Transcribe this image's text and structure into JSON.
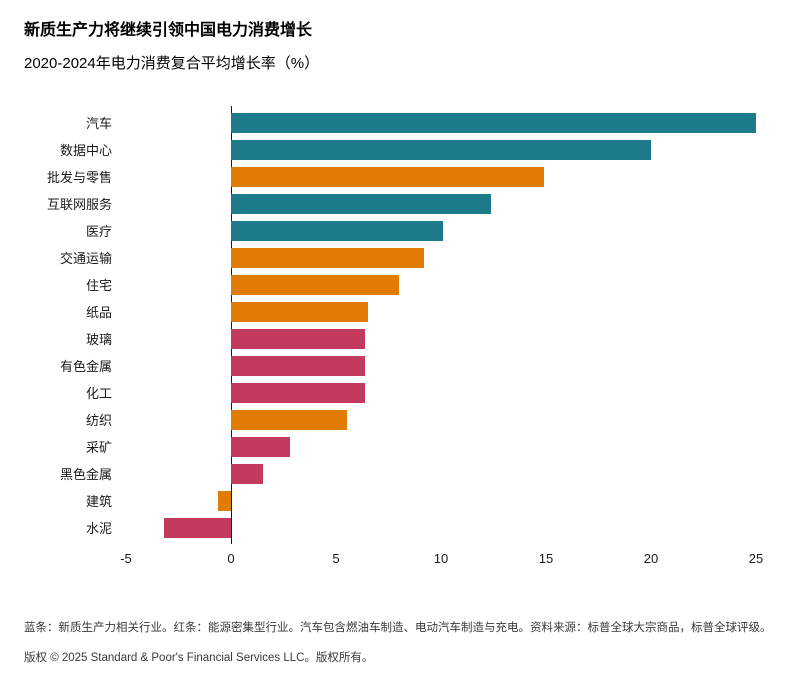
{
  "header": {
    "title": "新质生产力将继续引领中国电力消费增长",
    "subtitle": "2020-2024年电力消费复合平均增长率（%）"
  },
  "chart_data": {
    "type": "bar",
    "orientation": "horizontal",
    "title": "新质生产力将继续引领中国电力消费增长",
    "subtitle": "2020-2024年电力消费复合平均增长率（%）",
    "xlim": [
      -5,
      25
    ],
    "x_ticks": [
      "-5",
      "0",
      "5",
      "10",
      "15",
      "20",
      "25"
    ],
    "grid": "off",
    "colors": {
      "teal": "#1E7B8C",
      "orange": "#E07C04",
      "red": "#C23A5D"
    },
    "bars": [
      {
        "category": "汽车",
        "value": 25.0,
        "color": "teal"
      },
      {
        "category": "数据中心",
        "value": 20.0,
        "color": "teal"
      },
      {
        "category": "批发与零售",
        "value": 14.9,
        "color": "orange"
      },
      {
        "category": "互联网服务",
        "value": 12.4,
        "color": "teal"
      },
      {
        "category": "医疗",
        "value": 10.1,
        "color": "teal"
      },
      {
        "category": "交通运输",
        "value": 9.2,
        "color": "orange"
      },
      {
        "category": "住宅",
        "value": 8.0,
        "color": "orange"
      },
      {
        "category": "纸品",
        "value": 6.5,
        "color": "orange"
      },
      {
        "category": "玻璃",
        "value": 6.4,
        "color": "red"
      },
      {
        "category": "有色金属",
        "value": 6.4,
        "color": "red"
      },
      {
        "category": "化工",
        "value": 6.4,
        "color": "red"
      },
      {
        "category": "纺织",
        "value": 5.5,
        "color": "orange"
      },
      {
        "category": "采矿",
        "value": 2.8,
        "color": "red"
      },
      {
        "category": "黑色金属",
        "value": 1.5,
        "color": "red"
      },
      {
        "category": "建筑",
        "value": -0.6,
        "color": "orange"
      },
      {
        "category": "水泥",
        "value": -3.2,
        "color": "red"
      }
    ]
  },
  "footnotes": {
    "note": "蓝条：新质生产力相关行业。红条：能源密集型行业。汽车包含燃油车制造、电动汽车制造与充电。资料来源：标普全球大宗商品，标普全球评级。",
    "copyright": "版权 © 2025 Standard & Poor's Financial Services LLC。版权所有。"
  }
}
